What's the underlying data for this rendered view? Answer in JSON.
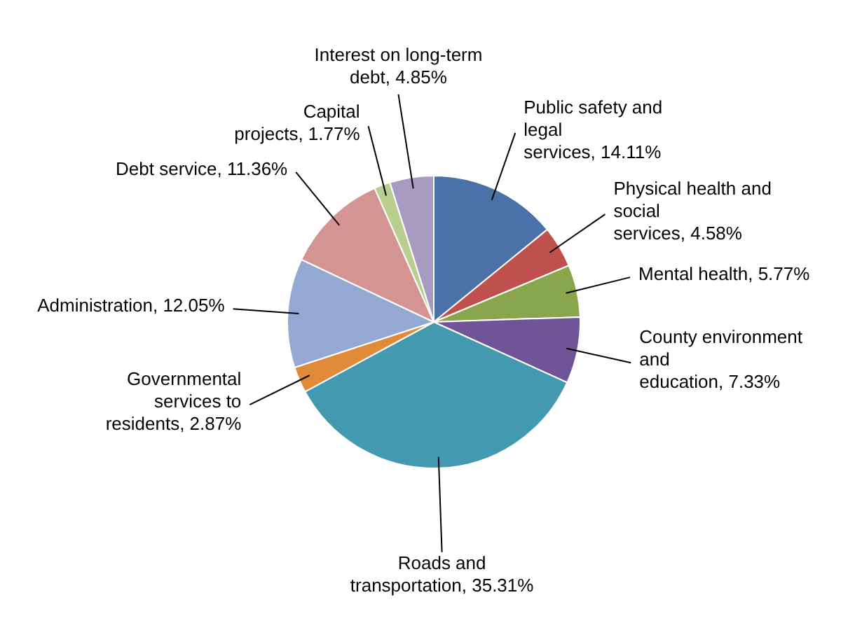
{
  "chart_data": {
    "type": "pie",
    "categories": [
      "Public safety and legal services",
      "Physical health and social services",
      "Mental health",
      "County environment and education",
      "Roads and transportation",
      "Governmental services to residents",
      "Administration",
      "Debt service",
      "Capital projects",
      "Interest on long-term debt"
    ],
    "values": [
      14.11,
      4.58,
      5.77,
      7.33,
      35.31,
      2.87,
      12.05,
      11.36,
      1.77,
      4.85
    ],
    "value_labels": [
      "14.11%",
      "4.58%",
      "5.77%",
      "7.33%",
      "35.31%",
      "2.87%",
      "12.05%",
      "11.36%",
      "1.77%",
      "4.85%"
    ],
    "colors": [
      "#4a72a8",
      "#c0504d",
      "#8aa64c",
      "#6f5497",
      "#4299b0",
      "#e08a3a",
      "#94a9d2",
      "#d49592",
      "#b8cf8f",
      "#a79bc1"
    ],
    "legend": false
  }
}
